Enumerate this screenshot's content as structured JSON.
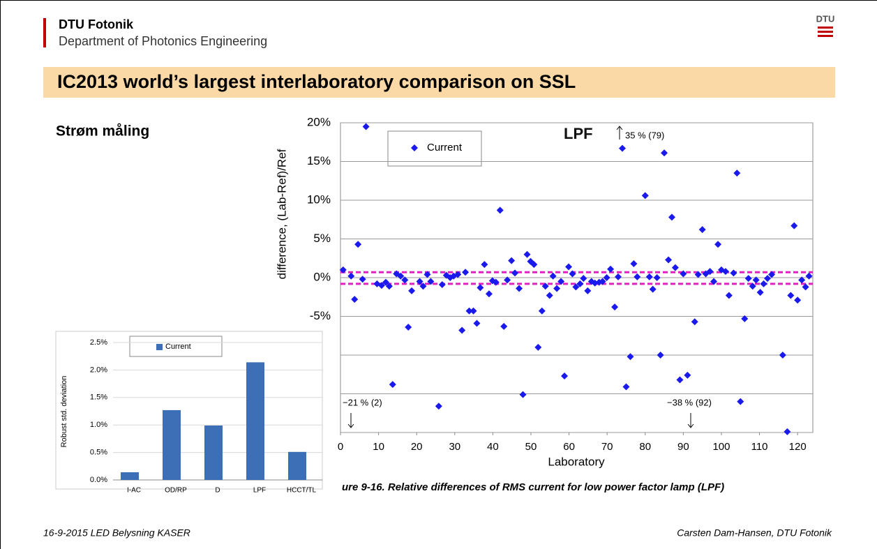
{
  "header": {
    "org": "DTU Fotonik",
    "department": "Department of Photonics Engineering",
    "logo": "DTU"
  },
  "title": "IC2013 world’s largest interlaboratory comparison on SSL",
  "subtitle": "Strøm måling",
  "footer": {
    "left": "16-9-2015  LED Belysning KASER",
    "right": "Carsten Dam-Hansen, DTU Fotonik"
  },
  "chart_data": [
    {
      "type": "scatter",
      "title": "LPF",
      "xlabel": "Laboratory",
      "ylabel": "difference, (Lab-Ref)/Ref",
      "caption": "ure 9-16. Relative differences of RMS current for low power factor lamp (LPF)",
      "annotations": [
        "35 % (79)",
        "−21 % (2)",
        "−38 % (92)"
      ],
      "xlim": [
        0,
        124
      ],
      "xticks": [
        0,
        10,
        20,
        30,
        40,
        50,
        60,
        70,
        80,
        90,
        100,
        110,
        120
      ],
      "ylim": [
        -20,
        20
      ],
      "yticks": [
        {
          "value": 20,
          "label": "20%"
        },
        {
          "value": 15,
          "label": "15%"
        },
        {
          "value": 10,
          "label": "10%"
        },
        {
          "value": 5,
          "label": "5%"
        },
        {
          "value": 0,
          "label": "0%"
        },
        {
          "value": -5,
          "label": "-5%"
        },
        {
          "value": -10,
          "label": null
        },
        {
          "value": -15,
          "label": null
        },
        {
          "value": -20,
          "label": null
        }
      ],
      "grid": true,
      "reference_band": [
        0.7,
        -0.8
      ],
      "reference_color": "#e020c0",
      "x": [
        0.7,
        2.8,
        3.7,
        4.6,
        5.8,
        6.7,
        9.6,
        10.8,
        11.9,
        12.8,
        13.7,
        14.7,
        15.8,
        16.9,
        17.8,
        18.7,
        20.8,
        21.7,
        22.8,
        23.7,
        25.8,
        26.7,
        27.8,
        28.8,
        29.7,
        30.8,
        31.9,
        32.8,
        33.8,
        34.9,
        35.8,
        36.7,
        37.8,
        39.0,
        39.9,
        40.8,
        41.9,
        42.9,
        43.8,
        44.9,
        45.8,
        46.9,
        47.9,
        49.0,
        49.9,
        50.8,
        51.9,
        52.9,
        53.8,
        54.9,
        55.8,
        56.8,
        57.9,
        58.8,
        59.9,
        60.9,
        61.8,
        62.9,
        63.8,
        64.9,
        65.9,
        66.8,
        67.9,
        68.8,
        69.9,
        70.9,
        72.0,
        72.9,
        74.0,
        75.0,
        76.1,
        77.0,
        77.9,
        80.0,
        81.1,
        82.0,
        83.1,
        84.0,
        85.0,
        86.1,
        87.0,
        87.9,
        89.1,
        90.0,
        91.1,
        93.0,
        93.9,
        95.0,
        95.9,
        97.0,
        98.0,
        99.1,
        100.0,
        101.1,
        102.0,
        103.2,
        104.1,
        105.0,
        106.1,
        107.1,
        108.2,
        109.1,
        110.2,
        111.1,
        112.1,
        113.2,
        116.1,
        117.3,
        118.2,
        119.1,
        120.0,
        121.1,
        122.1,
        123.0
      ],
      "series": [
        {
          "name": "Current",
          "color": "#1a1aee",
          "values": [
            1.0,
            0.2,
            -2.8,
            4.3,
            -0.2,
            19.5,
            -0.8,
            -1.0,
            -0.6,
            -1.1,
            -13.8,
            0.5,
            0.2,
            -0.3,
            -6.4,
            -1.7,
            -0.5,
            -1.1,
            0.4,
            -0.5,
            -16.6,
            -0.9,
            0.3,
            0.0,
            0.2,
            0.4,
            -6.8,
            0.7,
            -4.3,
            -4.3,
            -5.9,
            -1.3,
            1.7,
            -2.1,
            -0.4,
            -0.6,
            8.7,
            -6.3,
            -0.3,
            2.2,
            0.6,
            -1.4,
            -15.1,
            3.0,
            2.1,
            1.7,
            -9.0,
            -4.3,
            -1.1,
            -2.3,
            0.2,
            -1.4,
            -0.5,
            -12.7,
            1.4,
            0.5,
            -1.2,
            -0.8,
            -0.1,
            -1.7,
            -0.5,
            -0.7,
            -0.6,
            -0.5,
            0.0,
            1.1,
            -3.8,
            0.1,
            16.7,
            -14.1,
            -10.2,
            1.8,
            0.1,
            10.6,
            0.1,
            -1.5,
            0.0,
            -10.0,
            16.1,
            2.3,
            7.8,
            1.3,
            -13.2,
            0.5,
            -12.6,
            -5.7,
            0.4,
            6.2,
            0.5,
            0.8,
            -0.5,
            4.3,
            1.0,
            0.8,
            -2.3,
            0.6,
            13.5,
            -16.0,
            -5.3,
            -0.1,
            -1.1,
            -0.3,
            -1.9,
            -0.8,
            -0.1,
            0.4,
            -10.0,
            -19.9,
            -2.3,
            6.7,
            -2.9,
            -0.3,
            -1.2,
            0.2
          ]
        }
      ]
    },
    {
      "type": "bar",
      "ylabel": "Robust std. deviation",
      "categories": [
        "I-AC",
        "OD/RP",
        "D",
        "LPF",
        "HCCT/TL"
      ],
      "series": [
        {
          "name": "Current",
          "color": "#3d6fb6",
          "values": [
            0.14,
            1.27,
            0.99,
            2.14,
            0.51
          ]
        }
      ],
      "ylim": [
        0,
        2.5
      ],
      "yticks": [
        {
          "value": 0,
          "label": "0.0%"
        },
        {
          "value": 0.5,
          "label": "0.5%"
        },
        {
          "value": 1,
          "label": "1.0%"
        },
        {
          "value": 1.5,
          "label": "1.5%"
        },
        {
          "value": 2,
          "label": "2.0%"
        },
        {
          "value": 2.5,
          "label": "2.5%"
        }
      ],
      "grid": true
    }
  ]
}
